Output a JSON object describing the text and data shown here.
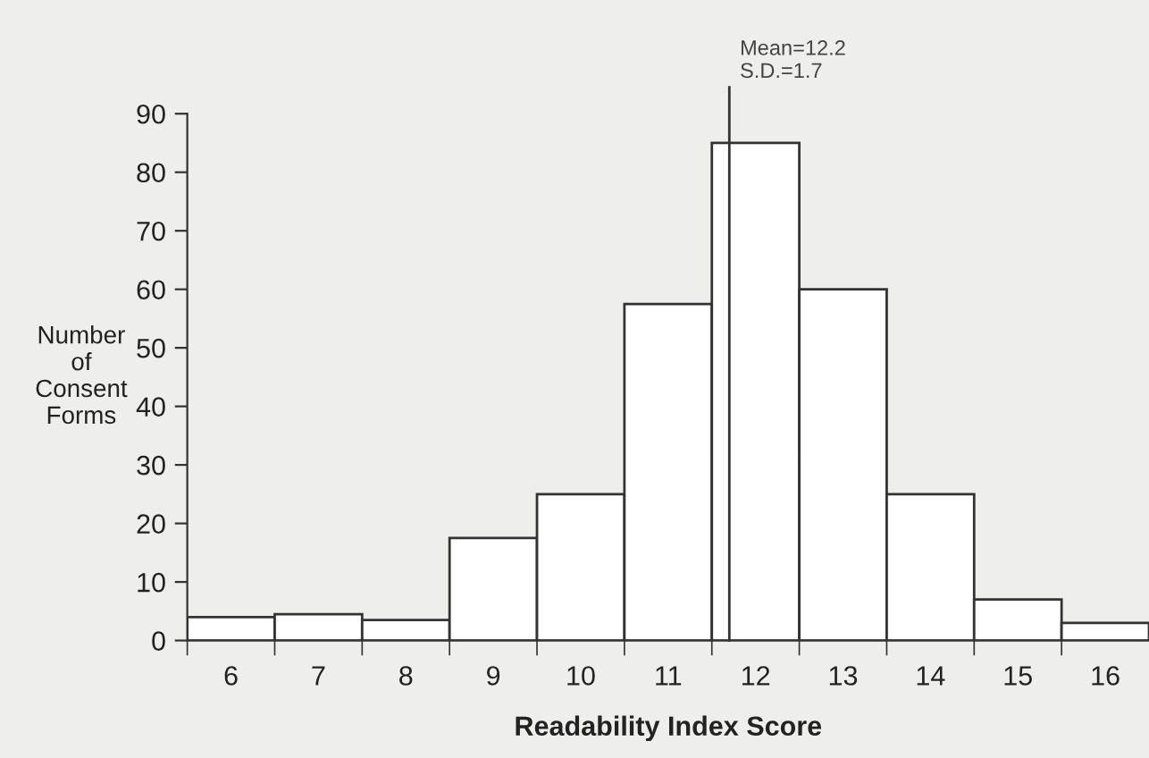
{
  "chart_data": {
    "type": "histogram",
    "xlabel": "Readability Index Score",
    "ylabel": "Number\nof\nConsent\nForms",
    "bins": [
      6,
      7,
      8,
      9,
      10,
      11,
      12,
      13,
      14,
      15,
      16,
      17
    ],
    "values": [
      4,
      4.5,
      3.5,
      17.5,
      25,
      57.5,
      85,
      60,
      25,
      7,
      3
    ],
    "color": "#ffffff",
    "xlim": [
      6,
      17
    ],
    "ylim": [
      0,
      90
    ],
    "yticks": [
      0,
      10,
      20,
      30,
      40,
      50,
      60,
      70,
      80,
      90
    ],
    "xticks": [
      {
        "value": 6,
        "label": null
      },
      {
        "value": 6.5,
        "label": "6"
      },
      {
        "value": 7,
        "label": null
      },
      {
        "value": 7.5,
        "label": "7"
      },
      {
        "value": 8,
        "label": null
      },
      {
        "value": 8.5,
        "label": "8"
      },
      {
        "value": 9,
        "label": null
      },
      {
        "value": 9.5,
        "label": "9"
      },
      {
        "value": 10,
        "label": null
      },
      {
        "value": 10.5,
        "label": "10"
      },
      {
        "value": 11,
        "label": null
      },
      {
        "value": 11.5,
        "label": "11"
      },
      {
        "value": 12,
        "label": null
      },
      {
        "value": 12.5,
        "label": "12"
      },
      {
        "value": 13,
        "label": null
      },
      {
        "value": 13.5,
        "label": "13"
      },
      {
        "value": 14,
        "label": null
      },
      {
        "value": 14.5,
        "label": "14"
      },
      {
        "value": 15,
        "label": null
      },
      {
        "value": 15.5,
        "label": "15"
      },
      {
        "value": 16,
        "label": null
      },
      {
        "value": 16.5,
        "label": "16"
      }
    ],
    "ref_lines": [
      {
        "axis": "x",
        "value": 12.2,
        "label": "Mean=12.2\nS.D.=1.7",
        "color": "#333333"
      }
    ],
    "grid": false,
    "legend": false
  }
}
